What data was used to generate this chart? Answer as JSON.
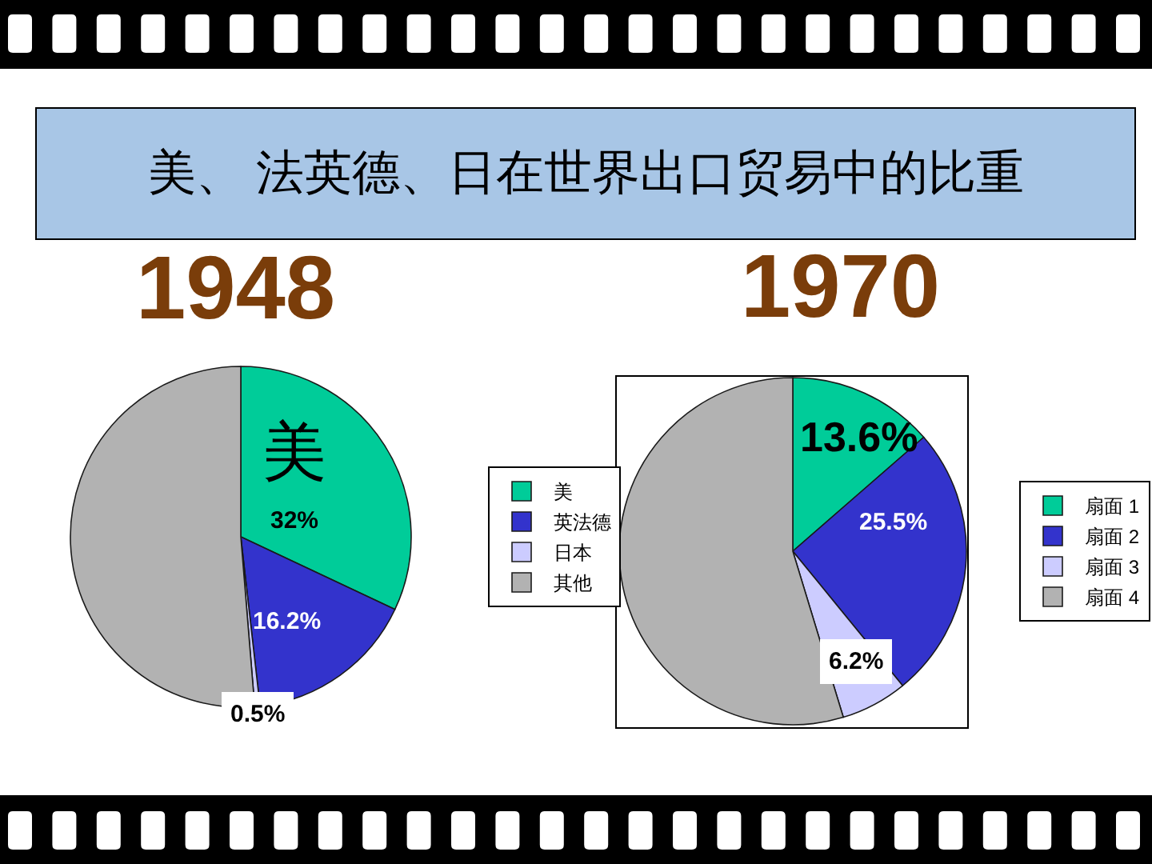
{
  "chart_data": [
    {
      "type": "pie",
      "title": "美、 法英德、日在世界出口贸易中的比重",
      "subtitle": "1948",
      "categories": [
        "美",
        "英法德",
        "日本",
        "其他"
      ],
      "values": [
        32,
        16.2,
        0.5,
        51.3
      ],
      "colors": [
        "#00cc99",
        "#3333cc",
        "#ccccff",
        "#b2b2b2"
      ],
      "value_labels": [
        "32%",
        "16.2%",
        "0.5%",
        null
      ],
      "annotations": [
        {
          "text": "美",
          "x": "美"
        }
      ],
      "legend": "right"
    },
    {
      "type": "pie",
      "subtitle": "1970",
      "categories": [
        "扇面 1",
        "扇面 2",
        "扇面 3",
        "扇面 4"
      ],
      "values": [
        13.6,
        25.5,
        6.2,
        54.7
      ],
      "colors": [
        "#00cc99",
        "#3333cc",
        "#ccccff",
        "#b2b2b2"
      ],
      "value_labels": [
        "13.6%",
        "25.5%",
        "6.2%",
        null
      ],
      "legend": "right"
    }
  ]
}
